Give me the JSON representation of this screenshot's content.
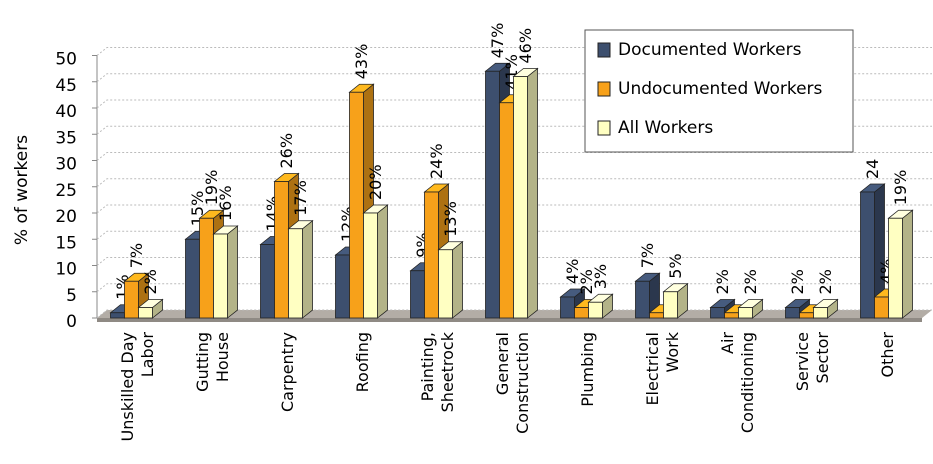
{
  "chart_data": {
    "type": "bar3d",
    "y_label": "% of workers",
    "categories": [
      [
        "Unskilled Day",
        "Labor"
      ],
      [
        "Gutting",
        "House"
      ],
      [
        "Carpentry"
      ],
      [
        "Roofing"
      ],
      [
        "Painting,",
        "Sheetrock"
      ],
      [
        "General",
        "Construction"
      ],
      [
        "Plumbing"
      ],
      [
        "Electrical",
        "Work"
      ],
      [
        "Air",
        "Conditioning"
      ],
      [
        "Service",
        "Sector"
      ],
      [
        "Other"
      ]
    ],
    "series": [
      {
        "name": "Documented Workers",
        "color": "#3d4f6e",
        "values": [
          1,
          15,
          14,
          12,
          9,
          47,
          4,
          7,
          2,
          2,
          24
        ],
        "value_labels": [
          "1%",
          "15%",
          "14%",
          "12%",
          "9%",
          "47%",
          "4%",
          "7%",
          "2%",
          "2%",
          "24"
        ]
      },
      {
        "name": "Undocumented Workers",
        "color": "#f7a11a",
        "values": [
          7,
          19,
          26,
          43,
          24,
          41,
          2,
          1,
          1,
          1,
          4
        ],
        "value_labels": [
          "7%",
          "19%",
          "26%",
          "43%",
          "24%",
          "41%",
          "2%",
          null,
          null,
          null,
          "4%"
        ]
      },
      {
        "name": "All Workers",
        "color": "#ffffc2",
        "values": [
          2,
          16,
          17,
          20,
          13,
          46,
          3,
          5,
          2,
          2,
          19
        ],
        "value_labels": [
          "2%",
          "16%",
          "17%",
          "20%",
          "13%",
          "46%",
          "3%",
          "5%",
          "2%",
          "2%",
          "19%"
        ]
      }
    ],
    "ylim": [
      0,
      50
    ],
    "yticks": [
      0,
      5,
      10,
      15,
      20,
      25,
      30,
      35,
      40,
      45,
      50
    ],
    "grid": true,
    "legend": "top-right"
  }
}
